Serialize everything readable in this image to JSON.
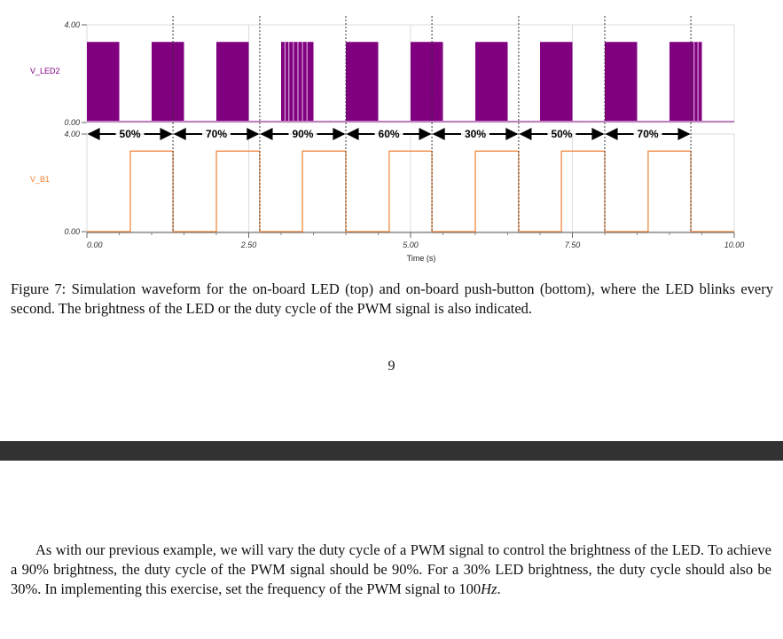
{
  "chart_data": [
    {
      "type": "line",
      "name": "led-waveform",
      "trace_label": "V_LED2",
      "trace_color": "#800080",
      "x_range": [
        0,
        10
      ],
      "y_range": [
        0,
        4
      ],
      "y_ticks": [
        "4.00",
        "0.00"
      ],
      "high_value": 3.3,
      "blink_period_s": 1.0,
      "on_intervals_s": [
        [
          0.0,
          0.5
        ],
        [
          1.0,
          1.5
        ],
        [
          2.0,
          2.5
        ],
        [
          3.0,
          3.5
        ],
        [
          4.0,
          4.5
        ],
        [
          5.0,
          5.5
        ],
        [
          6.0,
          6.5
        ],
        [
          7.0,
          7.5
        ],
        [
          8.0,
          8.5
        ],
        [
          9.0,
          9.5
        ]
      ],
      "duty_annotations": [
        {
          "label": "50%",
          "start": 0.0,
          "end": 1.33
        },
        {
          "label": "70%",
          "start": 1.33,
          "end": 2.67
        },
        {
          "label": "90%",
          "start": 2.67,
          "end": 4.0
        },
        {
          "label": "60%",
          "start": 4.0,
          "end": 5.33
        },
        {
          "label": "30%",
          "start": 5.33,
          "end": 6.67
        },
        {
          "label": "50%",
          "start": 6.67,
          "end": 8.0
        },
        {
          "label": "70%",
          "start": 8.0,
          "end": 9.33
        }
      ]
    },
    {
      "type": "line",
      "name": "button-waveform",
      "trace_label": "V_B1",
      "trace_color": "#f08030",
      "x_range": [
        0,
        10
      ],
      "y_range": [
        0,
        4
      ],
      "y_ticks": [
        "4.00",
        "0.00"
      ],
      "high_value": 3.3,
      "high_intervals_s": [
        [
          0.67,
          1.33
        ],
        [
          2.0,
          2.67
        ],
        [
          3.33,
          4.0
        ],
        [
          4.67,
          5.33
        ],
        [
          6.0,
          6.67
        ],
        [
          7.33,
          8.0
        ],
        [
          8.67,
          9.33
        ]
      ],
      "x_ticks": [
        0,
        2.5,
        5,
        7.5,
        10
      ],
      "x_tick_labels": [
        "0.00",
        "2.50",
        "5.00",
        "7.50",
        "10.00"
      ],
      "xlabel": "Time (s)"
    }
  ],
  "caption": "Figure 7: Simulation waveform for the on-board LED (top) and on-board push-button (bottom), where the LED blinks every second. The brightness of the LED or the duty cycle of the PWM signal is also indicated.",
  "page_number": "9",
  "paragraph": {
    "part1": "As with our previous example, we will vary the duty cycle of a PWM signal to control the brightness of the LED. To achieve a 90% brightness, the duty cycle of the PWM signal should be 90%. For a 30% LED brightness, the duty cycle should also be 30%. In implementing this exercise, set the frequency of the PWM signal to 100",
    "hz": "Hz",
    "end": "."
  }
}
